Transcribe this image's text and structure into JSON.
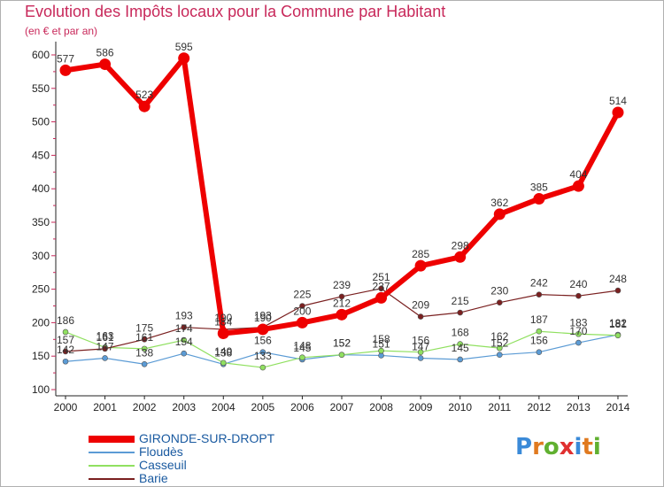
{
  "header": {
    "title": "Evolution des Impôts locaux pour la Commune par Habitant",
    "subtitle": "(en € et par an)"
  },
  "logo": {
    "text": "Proxiti",
    "letters": [
      "P",
      "r",
      "o",
      "x",
      "i",
      "t",
      "i"
    ],
    "colors": [
      "#3a8ad8",
      "#e07a20",
      "#60b030",
      "#e03030",
      "#3a8ad8",
      "#e07a20",
      "#60b030"
    ]
  },
  "chart_data": {
    "type": "line",
    "title": "Evolution des Impôts locaux pour la Commune par Habitant",
    "ylabel": "(en € et par an)",
    "xlabel": "",
    "categories": [
      "2000",
      "2001",
      "2002",
      "2003",
      "2004",
      "2005",
      "2006",
      "2007",
      "2008",
      "2009",
      "2010",
      "2011",
      "2012",
      "2013",
      "2014"
    ],
    "ylim": [
      100,
      600
    ],
    "yticks": [
      100,
      150,
      200,
      250,
      300,
      350,
      400,
      450,
      500,
      550,
      600
    ],
    "grid": false,
    "legend_position": "bottom-left",
    "series": [
      {
        "name": "GIRONDE-SUR-DROPT",
        "color": "#ee0000",
        "values": [
          577,
          586,
          523,
          595,
          184,
          190,
          200,
          212,
          237,
          285,
          298,
          362,
          385,
          404,
          514
        ]
      },
      {
        "name": "Floudès",
        "color": "#5b9bd5",
        "values": [
          142,
          147,
          138,
          154,
          138,
          156,
          145,
          152,
          151,
          147,
          145,
          152,
          156,
          170,
          182
        ]
      },
      {
        "name": "Casseuil",
        "color": "#90e060",
        "values": [
          186,
          163,
          161,
          174,
          140,
          133,
          148,
          152,
          158,
          156,
          168,
          162,
          187,
          183,
          181
        ]
      },
      {
        "name": "Barie",
        "color": "#7a2020",
        "values": [
          157,
          161,
          175,
          193,
          190,
          193,
          225,
          239,
          251,
          209,
          215,
          230,
          242,
          240,
          248
        ]
      }
    ],
    "data_labels": [
      [
        "577",
        "586",
        "523",
        "595",
        "184",
        "190",
        "200",
        "212",
        "237",
        "285",
        "298",
        "362",
        "385",
        "404",
        "514"
      ],
      [
        "142",
        "147",
        "138",
        "154",
        "138",
        "156",
        "145",
        "152",
        "151",
        "147",
        "145",
        "152",
        "156",
        "170",
        "182"
      ],
      [
        "186",
        "163",
        "161",
        "174",
        "140",
        "133",
        "148",
        "152",
        "158",
        "156",
        "168",
        "162",
        "187",
        "183",
        "181"
      ],
      [
        "157",
        "161",
        "175",
        "193",
        "190",
        "193",
        "225",
        "239",
        "251",
        "209",
        "215",
        "230",
        "242",
        "240",
        "248"
      ]
    ]
  }
}
